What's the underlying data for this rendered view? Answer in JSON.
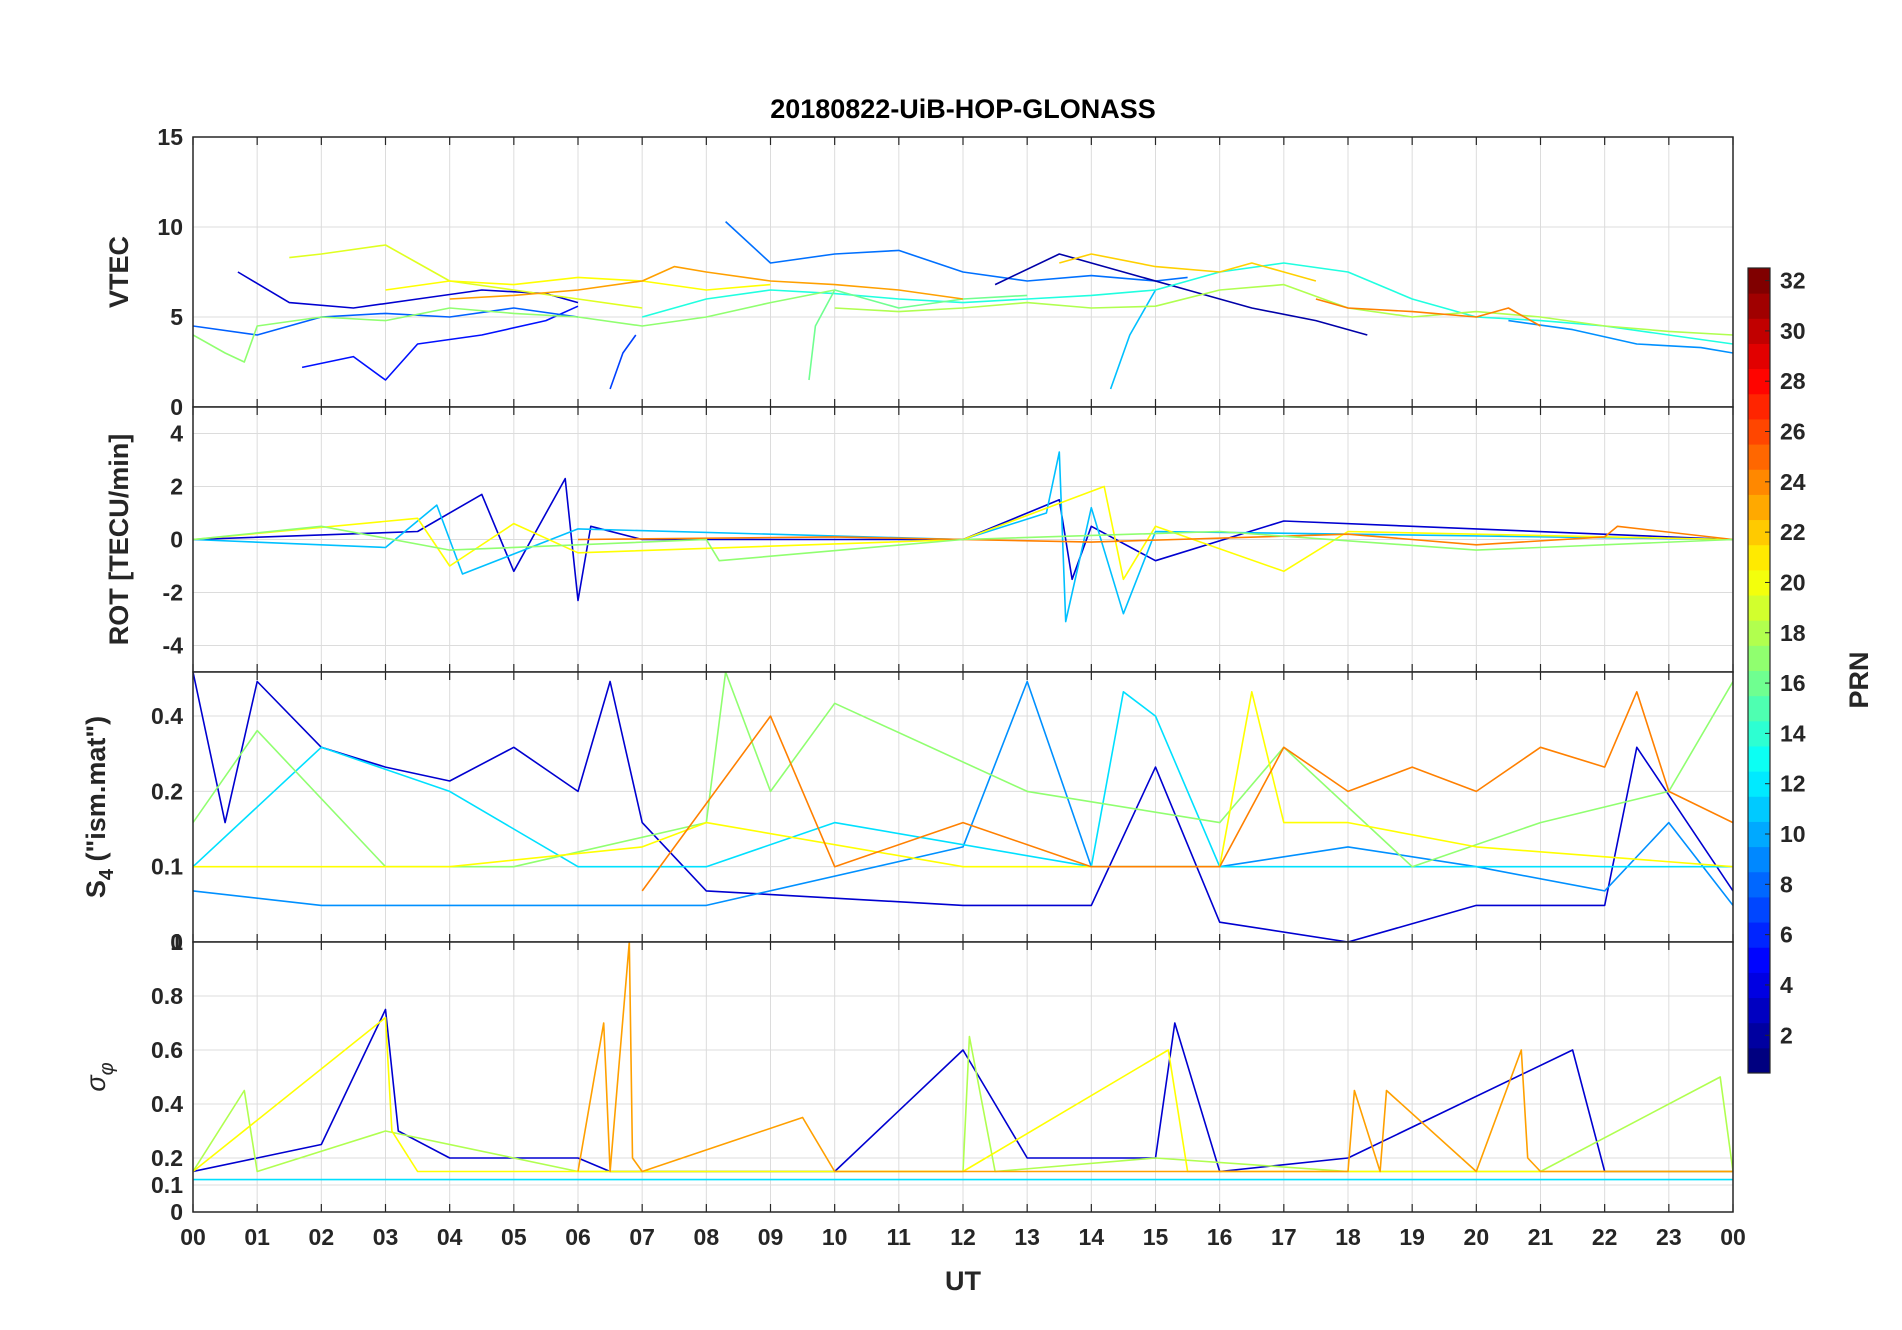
{
  "figure": {
    "title": "20180822-UiB-HOP-GLONASS",
    "xlabel": "UT",
    "xtick_labels": [
      "00",
      "01",
      "02",
      "03",
      "04",
      "05",
      "06",
      "07",
      "08",
      "09",
      "10",
      "11",
      "12",
      "13",
      "14",
      "15",
      "16",
      "17",
      "18",
      "19",
      "20",
      "21",
      "22",
      "23",
      "00"
    ]
  },
  "colorbar": {
    "label": "PRN",
    "range": [
      1,
      32
    ],
    "ticks": [
      "2",
      "4",
      "6",
      "8",
      "10",
      "12",
      "14",
      "16",
      "18",
      "20",
      "22",
      "24",
      "26",
      "28",
      "30",
      "32"
    ],
    "colormap": "jet",
    "colors": [
      "#00008f",
      "#0000ff",
      "#0080ff",
      "#00ffff",
      "#80ff80",
      "#ffff00",
      "#ff8000",
      "#ff0000",
      "#800000"
    ]
  },
  "chart_data": [
    {
      "type": "line",
      "panel": "vtec",
      "ylabel": "VTEC",
      "ylim": [
        0,
        15
      ],
      "yticks": [
        "0",
        "5",
        "10",
        "15"
      ],
      "xlim_hours": [
        0,
        24
      ],
      "grid": true,
      "series": [
        {
          "prn": 3,
          "color": "#0000d0",
          "x": [
            0.7,
            1.5,
            2.5,
            3.5,
            4.5,
            5.5,
            6.0
          ],
          "y": [
            7.5,
            5.8,
            5.5,
            6.0,
            6.5,
            6.3,
            5.8
          ]
        },
        {
          "prn": 4,
          "color": "#0010ff",
          "x": [
            1.7,
            2.5,
            3.0,
            3.5,
            4.5,
            5.5,
            6.0
          ],
          "y": [
            2.2,
            2.8,
            1.5,
            3.5,
            4.0,
            4.8,
            5.6
          ]
        },
        {
          "prn": 6,
          "color": "#0040ff",
          "x": [
            6.5,
            6.7,
            6.9
          ],
          "y": [
            1.0,
            3.0,
            4.0
          ]
        },
        {
          "prn": 8,
          "color": "#0070ff",
          "x": [
            8.3,
            9.0,
            10.0,
            11.0,
            12.0,
            13.0,
            14.0,
            15.0,
            15.5
          ],
          "y": [
            10.3,
            8.0,
            8.5,
            8.7,
            7.5,
            7.0,
            7.3,
            7.0,
            7.2
          ]
        },
        {
          "prn": 2,
          "color": "#0000a8",
          "x": [
            12.5,
            13.5,
            14.5,
            15.5,
            16.5,
            17.5,
            18.3
          ],
          "y": [
            6.8,
            8.5,
            7.5,
            6.5,
            5.5,
            4.8,
            4.0
          ]
        },
        {
          "prn": 7,
          "color": "#0060ff",
          "x": [
            0.0,
            1.0,
            2.0,
            3.0,
            4.0,
            5.0,
            6.0
          ],
          "y": [
            4.5,
            4.0,
            5.0,
            5.2,
            5.0,
            5.5,
            5.0
          ]
        },
        {
          "prn": 9,
          "color": "#0090ff",
          "x": [
            20.5,
            21.5,
            22.5,
            23.5,
            24.0
          ],
          "y": [
            4.8,
            4.3,
            3.5,
            3.3,
            3.0
          ]
        },
        {
          "prn": 11,
          "color": "#00c0ff",
          "x": [
            14.3,
            14.6,
            15.0
          ],
          "y": [
            1.0,
            4.0,
            6.5
          ]
        },
        {
          "prn": 13,
          "color": "#20ffe0",
          "x": [
            7.0,
            8.0,
            9.0,
            10.0,
            11.0,
            12.0,
            13.0,
            14.0,
            15.0,
            16.0,
            17.0,
            18.0,
            19.0,
            20.0,
            21.0,
            22.0,
            23.0,
            24.0
          ],
          "y": [
            5.0,
            6.0,
            6.5,
            6.3,
            6.0,
            5.8,
            6.0,
            6.2,
            6.5,
            7.5,
            8.0,
            7.5,
            6.0,
            5.0,
            4.8,
            4.5,
            4.0,
            3.5
          ]
        },
        {
          "prn": 15,
          "color": "#70ff90",
          "x": [
            9.6,
            9.7,
            10.0,
            11.0,
            12.0,
            13.0
          ],
          "y": [
            1.5,
            4.5,
            6.5,
            5.5,
            6.0,
            6.2
          ]
        },
        {
          "prn": 16,
          "color": "#90ff70",
          "x": [
            0.0,
            0.5,
            0.8,
            1.0,
            2.0,
            3.0,
            4.0,
            5.0,
            6.0,
            7.0,
            8.0,
            9.0,
            10.0
          ],
          "y": [
            4.0,
            3.0,
            2.5,
            4.5,
            5.0,
            4.8,
            5.5,
            5.2,
            5.0,
            4.5,
            5.0,
            5.8,
            6.5
          ]
        },
        {
          "prn": 17,
          "color": "#b0ff50",
          "x": [
            10.0,
            11.0,
            12.0,
            13.0,
            14.0,
            15.0,
            16.0,
            17.0,
            18.0,
            19.0,
            20.0,
            21.0,
            22.0,
            23.0,
            24.0
          ],
          "y": [
            5.5,
            5.3,
            5.5,
            5.8,
            5.5,
            5.6,
            6.5,
            6.8,
            5.5,
            5.0,
            5.3,
            5.0,
            4.5,
            4.2,
            4.0
          ]
        },
        {
          "prn": 19,
          "color": "#e0ff20",
          "x": [
            1.5,
            2.0,
            3.0,
            3.5,
            4.0,
            5.0,
            6.0,
            7.0
          ],
          "y": [
            8.3,
            8.5,
            9.0,
            8.0,
            7.0,
            6.5,
            6.0,
            5.5
          ]
        },
        {
          "prn": 20,
          "color": "#ffff00",
          "x": [
            3.0,
            4.0,
            5.0,
            6.0,
            7.0,
            8.0,
            9.0
          ],
          "y": [
            6.5,
            7.0,
            6.8,
            7.2,
            7.0,
            6.5,
            6.8
          ]
        },
        {
          "prn": 21,
          "color": "#ffd000",
          "x": [
            13.5,
            14.0,
            15.0,
            16.0,
            16.5,
            17.0,
            17.5
          ],
          "y": [
            8.0,
            8.5,
            7.8,
            7.5,
            8.0,
            7.5,
            7.0
          ]
        },
        {
          "prn": 23,
          "color": "#ffa000",
          "x": [
            4.0,
            5.0,
            6.0,
            7.0,
            7.5,
            8.0,
            9.0,
            10.0,
            11.0,
            12.0
          ],
          "y": [
            6.0,
            6.2,
            6.5,
            7.0,
            7.8,
            7.5,
            7.0,
            6.8,
            6.5,
            6.0
          ]
        },
        {
          "prn": 24,
          "color": "#ff8000",
          "x": [
            17.5,
            18.0,
            19.0,
            20.0,
            20.5,
            21.0
          ],
          "y": [
            6.0,
            5.5,
            5.3,
            5.0,
            5.5,
            4.5
          ]
        }
      ]
    },
    {
      "type": "line",
      "panel": "rot",
      "ylabel": "ROT [TECU/min]",
      "ylim": [
        -5,
        5
      ],
      "yticks": [
        "-4",
        "-2",
        "0",
        "2",
        "4"
      ],
      "xlim_hours": [
        0,
        24
      ],
      "grid": true,
      "series": [
        {
          "prn": 3,
          "color": "#0000d0",
          "x": [
            0.0,
            3.5,
            4.5,
            5.0,
            5.8,
            6.0,
            6.2,
            7.0,
            12.0,
            13.5,
            13.7,
            14.0,
            15.0,
            17.0,
            24.0
          ],
          "y": [
            0.0,
            0.3,
            1.7,
            -1.2,
            2.3,
            -2.3,
            0.5,
            0.0,
            0.0,
            1.5,
            -1.5,
            0.5,
            -0.8,
            0.7,
            0.0
          ]
        },
        {
          "prn": 11,
          "color": "#00c0ff",
          "x": [
            0.0,
            3.0,
            3.8,
            4.2,
            6.0,
            12.0,
            13.3,
            13.5,
            13.6,
            14.0,
            14.5,
            15.0,
            24.0
          ],
          "y": [
            0.0,
            -0.3,
            1.3,
            -1.3,
            0.4,
            0.0,
            1.0,
            3.3,
            -3.1,
            1.2,
            -2.8,
            0.3,
            0.0
          ]
        },
        {
          "prn": 20,
          "color": "#ffff00",
          "x": [
            0.0,
            3.5,
            4.0,
            5.0,
            6.0,
            12.0,
            14.2,
            14.5,
            15.0,
            17.0,
            18.0,
            24.0
          ],
          "y": [
            0.0,
            0.8,
            -1.0,
            0.6,
            -0.5,
            0.0,
            2.0,
            -1.5,
            0.5,
            -1.2,
            0.3,
            0.0
          ]
        },
        {
          "prn": 24,
          "color": "#ff8000",
          "x": [
            6.0,
            10.0,
            14.0,
            18.0,
            20.0,
            22.0,
            22.2,
            24.0
          ],
          "y": [
            0.0,
            0.1,
            -0.1,
            0.2,
            -0.2,
            0.1,
            0.5,
            0.0
          ]
        },
        {
          "prn": 16,
          "color": "#90ff70",
          "x": [
            0.0,
            2.0,
            4.0,
            8.0,
            8.2,
            12.0,
            16.0,
            20.0,
            24.0
          ],
          "y": [
            0.0,
            0.5,
            -0.4,
            0.0,
            -0.8,
            0.0,
            0.3,
            -0.4,
            0.0
          ]
        }
      ]
    },
    {
      "type": "line",
      "panel": "s4",
      "ylabel": "S_4 (\"ism.mat\")",
      "ylabel_main": "S",
      "ylabel_sub": "4",
      "ylabel_rest": " (\"ism.mat\")",
      "ylim": [
        0.05,
        0.6
      ],
      "yticks": [
        "0",
        "0.1",
        "0.2",
        "0.4"
      ],
      "xlim_hours": [
        0,
        24
      ],
      "grid": true,
      "series": [
        {
          "prn": 3,
          "color": "#0000d0",
          "x": [
            0.0,
            0.5,
            1.0,
            2.0,
            3.0,
            4.0,
            5.0,
            6.0,
            6.5,
            7.0,
            8.0,
            12.0,
            14.0,
            15.0,
            16.0,
            18.0,
            20.0,
            22.0,
            22.5,
            24.0
          ],
          "y": [
            0.6,
            0.15,
            0.55,
            0.3,
            0.25,
            0.22,
            0.3,
            0.2,
            0.55,
            0.15,
            0.08,
            0.07,
            0.07,
            0.25,
            0.06,
            0.05,
            0.07,
            0.07,
            0.3,
            0.08
          ]
        },
        {
          "prn": 9,
          "color": "#0090ff",
          "x": [
            0.0,
            2.0,
            4.0,
            8.0,
            12.0,
            13.0,
            14.0,
            16.0,
            18.0,
            20.0,
            22.0,
            23.0,
            24.0
          ],
          "y": [
            0.08,
            0.07,
            0.07,
            0.07,
            0.12,
            0.55,
            0.1,
            0.1,
            0.12,
            0.1,
            0.08,
            0.15,
            0.07
          ]
        },
        {
          "prn": 12,
          "color": "#00e0ff",
          "x": [
            0.0,
            2.0,
            4.0,
            6.0,
            8.0,
            10.0,
            14.0,
            14.5,
            15.0,
            16.0,
            18.0,
            24.0
          ],
          "y": [
            0.1,
            0.3,
            0.2,
            0.1,
            0.1,
            0.15,
            0.1,
            0.5,
            0.4,
            0.1,
            0.1,
            0.1
          ]
        },
        {
          "prn": 16,
          "color": "#90ff70",
          "x": [
            0.0,
            1.0,
            3.0,
            5.0,
            8.0,
            8.3,
            9.0,
            10.0,
            13.0,
            16.0,
            17.0,
            19.0,
            21.0,
            23.0,
            24.0
          ],
          "y": [
            0.15,
            0.35,
            0.1,
            0.1,
            0.15,
            0.6,
            0.2,
            0.45,
            0.2,
            0.15,
            0.3,
            0.1,
            0.15,
            0.2,
            0.55
          ]
        },
        {
          "prn": 20,
          "color": "#ffff00",
          "x": [
            0.0,
            2.0,
            4.0,
            7.0,
            8.0,
            12.0,
            16.0,
            16.5,
            17.0,
            18.0,
            20.0,
            24.0
          ],
          "y": [
            0.1,
            0.1,
            0.1,
            0.12,
            0.15,
            0.1,
            0.1,
            0.5,
            0.15,
            0.15,
            0.12,
            0.1
          ]
        },
        {
          "prn": 24,
          "color": "#ff8000",
          "x": [
            7.0,
            9.0,
            10.0,
            12.0,
            14.0,
            16.0,
            17.0,
            18.0,
            19.0,
            20.0,
            21.0,
            22.0,
            22.5,
            23.0,
            24.0
          ],
          "y": [
            0.08,
            0.4,
            0.1,
            0.15,
            0.1,
            0.1,
            0.3,
            0.2,
            0.25,
            0.2,
            0.3,
            0.25,
            0.5,
            0.2,
            0.15
          ]
        }
      ]
    },
    {
      "type": "line",
      "panel": "sigma_phi",
      "ylabel": "σ_φ",
      "ylabel_main": "σ",
      "ylabel_sub": "φ",
      "ylim": [
        0,
        1
      ],
      "yticks": [
        "0",
        "0.1",
        "0.2",
        "0.4",
        "0.6",
        "0.8",
        "1"
      ],
      "xlim_hours": [
        0,
        24
      ],
      "grid": true,
      "series": [
        {
          "prn": 3,
          "color": "#0000d0",
          "x": [
            0.0,
            1.0,
            2.0,
            3.0,
            3.2,
            4.0,
            6.0,
            6.5,
            8.0,
            10.0,
            12.0,
            13.0,
            15.0,
            15.3,
            16.0,
            18.0,
            21.5,
            22.0,
            24.0
          ],
          "y": [
            0.15,
            0.2,
            0.25,
            0.75,
            0.3,
            0.2,
            0.2,
            0.15,
            0.15,
            0.15,
            0.6,
            0.2,
            0.2,
            0.7,
            0.15,
            0.2,
            0.6,
            0.15,
            0.15
          ]
        },
        {
          "prn": 12,
          "color": "#00e0ff",
          "x": [
            0.0,
            3.0,
            6.0,
            9.0,
            12.0,
            15.0,
            18.0,
            21.0,
            24.0
          ],
          "y": [
            0.12,
            0.12,
            0.12,
            0.12,
            0.12,
            0.12,
            0.12,
            0.12,
            0.12
          ]
        },
        {
          "prn": 17,
          "color": "#b0ff50",
          "x": [
            0.0,
            0.8,
            1.0,
            3.0,
            6.0,
            12.0,
            12.1,
            12.5,
            15.0,
            18.0,
            21.0,
            23.8,
            24.0
          ],
          "y": [
            0.15,
            0.45,
            0.15,
            0.3,
            0.15,
            0.15,
            0.65,
            0.15,
            0.2,
            0.15,
            0.15,
            0.5,
            0.15
          ]
        },
        {
          "prn": 20,
          "color": "#ffff00",
          "x": [
            0.0,
            3.0,
            3.1,
            3.5,
            6.0,
            12.0,
            15.2,
            15.5,
            18.0,
            24.0
          ],
          "y": [
            0.15,
            0.72,
            0.3,
            0.15,
            0.15,
            0.15,
            0.6,
            0.15,
            0.15,
            0.15
          ]
        },
        {
          "prn": 23,
          "color": "#ffa000",
          "x": [
            6.0,
            6.4,
            6.5,
            6.8,
            6.85,
            7.0,
            9.5,
            10.0,
            18.0,
            18.1,
            18.5,
            18.6,
            20.0,
            20.7,
            20.8,
            21.0,
            24.0
          ],
          "y": [
            0.15,
            0.7,
            0.15,
            1.0,
            0.2,
            0.15,
            0.35,
            0.15,
            0.15,
            0.45,
            0.15,
            0.45,
            0.15,
            0.6,
            0.2,
            0.15,
            0.15
          ]
        }
      ]
    }
  ]
}
